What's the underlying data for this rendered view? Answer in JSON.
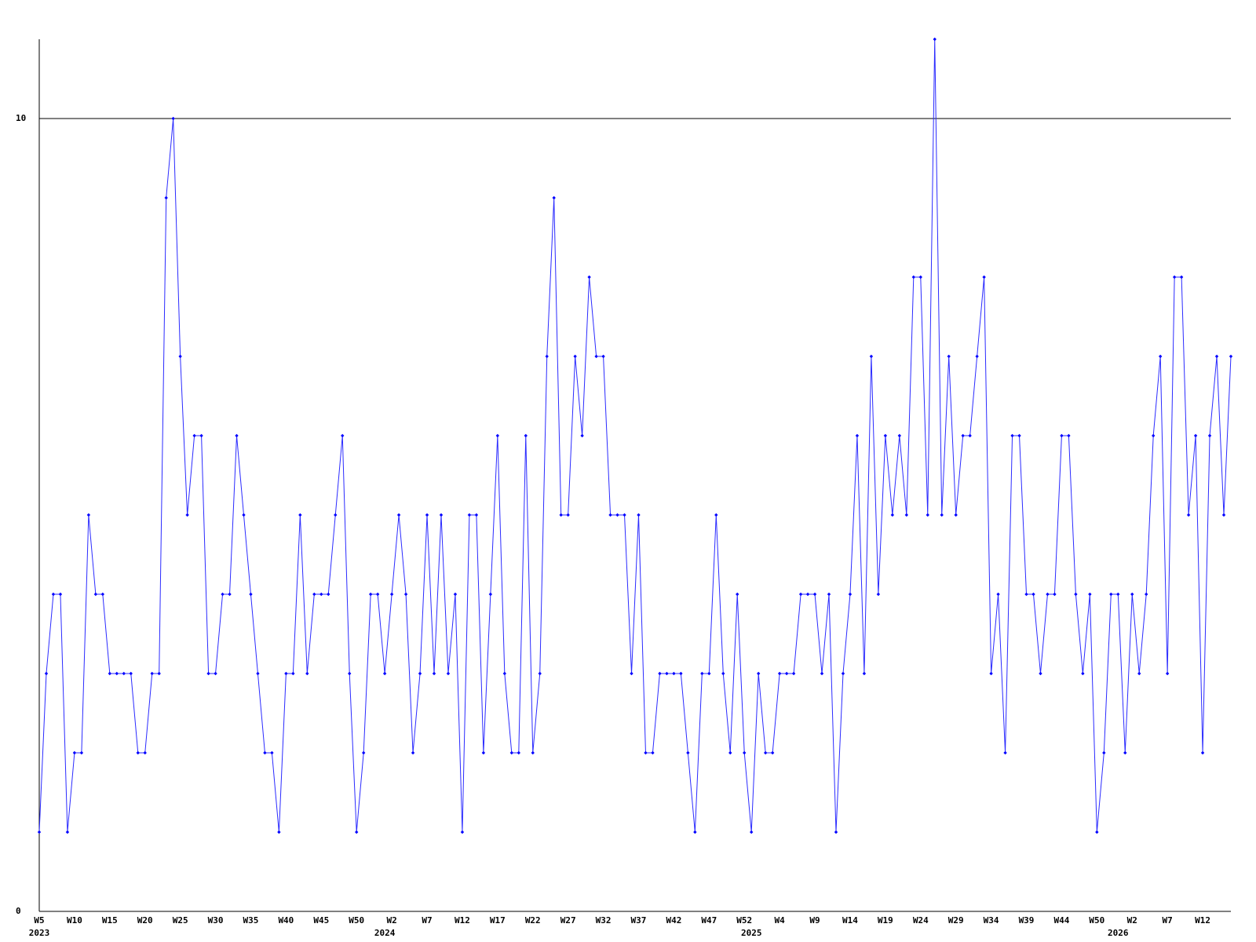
{
  "chart_data": {
    "type": "line",
    "categories": [
      "W5",
      null,
      null,
      null,
      null,
      "W10",
      null,
      null,
      null,
      null,
      "W15",
      null,
      null,
      null,
      null,
      "W20",
      null,
      null,
      null,
      null,
      "W25",
      null,
      null,
      null,
      null,
      "W30",
      null,
      null,
      null,
      null,
      "W35",
      null,
      null,
      null,
      null,
      "W40",
      null,
      null,
      null,
      null,
      "W45",
      null,
      null,
      null,
      null,
      "W50",
      null,
      null,
      null,
      null,
      "W2",
      null,
      null,
      null,
      null,
      "W7",
      null,
      null,
      null,
      null,
      "W12",
      null,
      null,
      null,
      null,
      "W17",
      null,
      null,
      null,
      null,
      "W22",
      null,
      null,
      null,
      null,
      "W27",
      null,
      null,
      null,
      null,
      "W32",
      null,
      null,
      null,
      null,
      "W37",
      null,
      null,
      null,
      null,
      "W42",
      null,
      null,
      null,
      null,
      "W47",
      null,
      null,
      null,
      null,
      "W52",
      null,
      null,
      null,
      null,
      "W4",
      null,
      null,
      null,
      null,
      "W9",
      null,
      null,
      null,
      null,
      "W14",
      null,
      null,
      null,
      null,
      "W19",
      null,
      null,
      null,
      null,
      "W24",
      null,
      null,
      null,
      null,
      "W29",
      null,
      null,
      null,
      null,
      "W34",
      null,
      null,
      null,
      null,
      "W39",
      null,
      null,
      null,
      null,
      "W44",
      null,
      null,
      null,
      null,
      "W50",
      null,
      null,
      null,
      null,
      "W2",
      null,
      null,
      null,
      null,
      "W7",
      null,
      null,
      null,
      null,
      "W12",
      null,
      null,
      null,
      null
    ],
    "year_ticks": [
      {
        "value": 0,
        "label": "2023"
      },
      {
        "value": 49,
        "label": "2024"
      },
      {
        "value": 101,
        "label": "2025"
      },
      {
        "value": 153,
        "label": "2026"
      }
    ],
    "values": [
      1,
      3,
      4,
      4,
      1,
      2,
      2,
      5,
      4,
      4,
      3,
      3,
      3,
      3,
      2,
      2,
      3,
      3,
      9,
      10,
      7,
      5,
      6,
      6,
      3,
      3,
      4,
      4,
      6,
      5,
      4,
      3,
      2,
      2,
      1,
      3,
      3,
      5,
      3,
      4,
      4,
      4,
      5,
      6,
      3,
      1,
      2,
      4,
      4,
      3,
      4,
      5,
      4,
      2,
      3,
      5,
      3,
      5,
      3,
      4,
      1,
      5,
      5,
      2,
      4,
      6,
      3,
      2,
      2,
      6,
      2,
      3,
      7,
      9,
      5,
      5,
      7,
      6,
      8,
      7,
      7,
      5,
      5,
      5,
      3,
      5,
      2,
      2,
      3,
      3,
      3,
      3,
      2,
      1,
      3,
      3,
      5,
      3,
      2,
      4,
      2,
      1,
      3,
      2,
      2,
      3,
      3,
      3,
      4,
      4,
      4,
      3,
      4,
      1,
      3,
      4,
      6,
      3,
      7,
      4,
      6,
      5,
      6,
      5,
      8,
      8,
      5,
      11,
      5,
      7,
      5,
      6,
      6,
      7,
      8,
      3,
      4,
      2,
      6,
      6,
      4,
      4,
      3,
      4,
      4,
      6,
      6,
      4,
      3,
      4,
      1,
      2,
      4,
      4,
      2,
      4,
      3,
      4,
      6,
      7,
      3,
      8,
      8,
      5,
      6,
      2,
      6,
      7,
      5,
      7
    ],
    "color": "#2b2bff",
    "marker_color": "#0000ff",
    "ylim": [
      0,
      11
    ],
    "yticks": [
      0,
      10
    ],
    "grid": true
  }
}
